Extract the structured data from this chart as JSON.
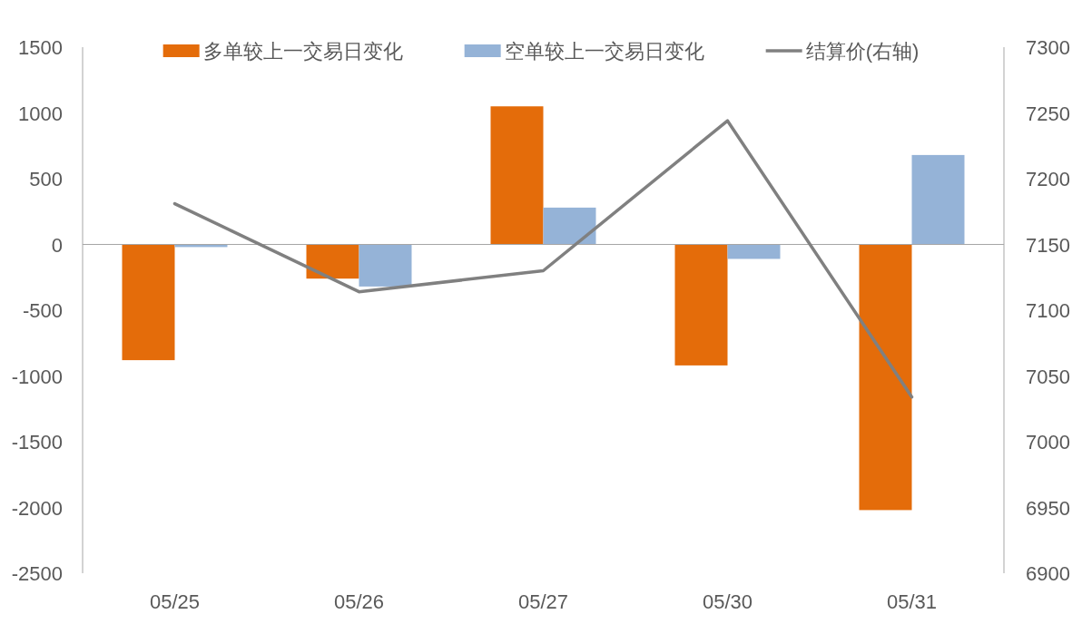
{
  "chart_data": {
    "type": "bar",
    "categories": [
      "05/25",
      "05/26",
      "05/27",
      "05/30",
      "05/31"
    ],
    "series": [
      {
        "name": "多单较上一交易日变化",
        "color": "#e46c0a",
        "values": [
          -880,
          -260,
          1050,
          -920,
          -2020
        ]
      },
      {
        "name": "空单较上一交易日变化",
        "color": "#95b3d7",
        "values": [
          -20,
          -320,
          280,
          -110,
          680
        ]
      },
      {
        "name": "结算价(右轴)",
        "type": "line",
        "axis": "y2",
        "color": "#808080",
        "values": [
          7181,
          7114,
          7130,
          7244,
          7034
        ]
      }
    ],
    "ylim": [
      -2500,
      1500
    ],
    "yticks": [
      -2500,
      -2000,
      -1500,
      -1000,
      -500,
      0,
      500,
      1000,
      1500
    ],
    "y2lim": [
      6900,
      7300
    ],
    "y2ticks": [
      6900,
      6950,
      7000,
      7050,
      7100,
      7150,
      7200,
      7250,
      7300
    ],
    "ref_lines": [
      {
        "axis": "y",
        "value": 0,
        "color": "#a6a6a6"
      }
    ],
    "legend": "top",
    "grid": false
  }
}
